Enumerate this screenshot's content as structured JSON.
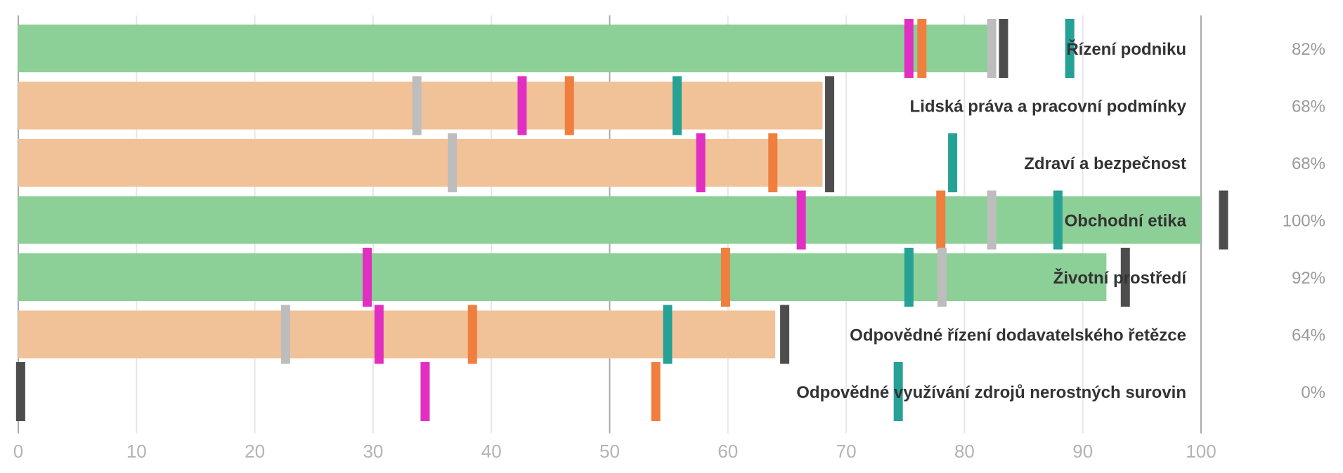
{
  "chart_data": {
    "type": "bar",
    "orientation": "horizontal",
    "title": "",
    "xlabel": "",
    "ylabel": "",
    "xlim": [
      0,
      100
    ],
    "x_ticks": [
      0,
      10,
      20,
      30,
      40,
      50,
      60,
      70,
      80,
      90,
      100
    ],
    "grid": true,
    "colors": {
      "bar_above": "#8ccf97",
      "bar_below": "#f1c298",
      "marker_grey": "#bdbdbd",
      "marker_magenta": "#e12fc2",
      "marker_orange": "#f07e3e",
      "marker_teal": "#26a196",
      "marker_dark": "#4d4d4d"
    },
    "categories": [
      {
        "label": "Řízení podniku",
        "value": 82,
        "value_label": "82%",
        "status": "above",
        "markers": {
          "grey": 82.3,
          "magenta": 75.3,
          "orange": 76.4,
          "teal": 88.9,
          "dark": 83.3
        }
      },
      {
        "label": "Lidská práva a pracovní podmínky",
        "value": 68,
        "value_label": "68%",
        "status": "below",
        "markers": {
          "grey": 33.7,
          "magenta": 42.6,
          "orange": 46.6,
          "teal": 55.7,
          "dark": 68.6
        }
      },
      {
        "label": "Zdraví a bezpečnost",
        "value": 68,
        "value_label": "68%",
        "status": "below",
        "markers": {
          "grey": 36.7,
          "magenta": 57.7,
          "orange": 63.8,
          "teal": 79.0,
          "dark": 68.6
        }
      },
      {
        "label": "Obchodní etika",
        "value": 100,
        "value_label": "100%",
        "status": "above",
        "markers": {
          "grey": 82.3,
          "magenta": 66.2,
          "orange": 78.0,
          "teal": 87.9,
          "dark": 101.9
        }
      },
      {
        "label": "Životní prostředí",
        "value": 92,
        "value_label": "92%",
        "status": "above",
        "markers": {
          "grey": 78.1,
          "magenta": 29.5,
          "orange": 59.8,
          "teal": 75.3,
          "dark": 93.6
        }
      },
      {
        "label": "Odpovědné řízení dodavatelského řetězce",
        "value": 64,
        "value_label": "64%",
        "status": "below",
        "markers": {
          "grey": 22.6,
          "magenta": 30.5,
          "orange": 38.4,
          "teal": 54.9,
          "dark": 64.8
        }
      },
      {
        "label": "Odpovědné využívání zdrojů nerostných surovin",
        "value": 0,
        "value_label": "0%",
        "status": "below",
        "markers": {
          "grey": 0.2,
          "magenta": 34.4,
          "orange": 53.9,
          "teal": 74.4,
          "dark": 0.2
        }
      }
    ]
  }
}
